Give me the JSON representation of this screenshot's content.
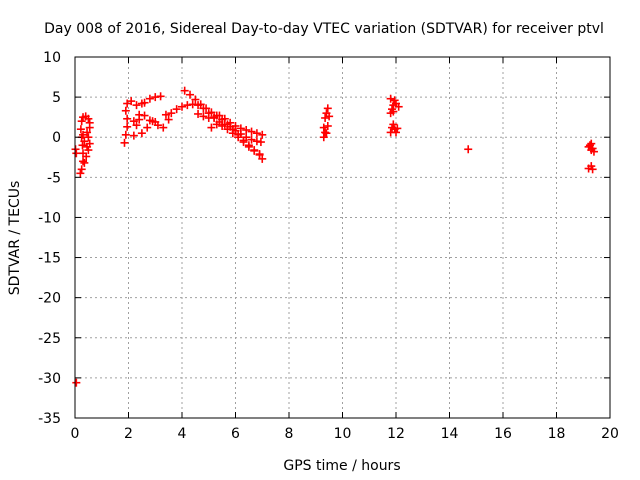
{
  "chart_data": {
    "type": "scatter",
    "title": "Day 008 of 2016, Sidereal Day-to-day VTEC variation (SDTVAR) for receiver ptvl",
    "xlabel": "GPS time / hours",
    "ylabel": "SDTVAR / TECUs",
    "xlim": [
      0,
      20
    ],
    "ylim": [
      -35,
      10
    ],
    "xticks": [
      0,
      2,
      4,
      6,
      8,
      10,
      12,
      14,
      16,
      18,
      20
    ],
    "yticks": [
      10,
      5,
      0,
      -5,
      -10,
      -15,
      -20,
      -25,
      -30,
      -35
    ],
    "grid": true,
    "series": [
      {
        "name": "SDTVAR",
        "color": "#ff0000",
        "marker": "plus",
        "points": [
          [
            0.02,
            -1.5
          ],
          [
            0.05,
            -2.0
          ],
          [
            0.05,
            -30.6
          ],
          [
            0.2,
            -4.5
          ],
          [
            0.25,
            -4.0
          ],
          [
            0.3,
            -3.0
          ],
          [
            0.3,
            -2.0
          ],
          [
            0.28,
            -1.0
          ],
          [
            0.25,
            0.0
          ],
          [
            0.22,
            1.0
          ],
          [
            0.25,
            2.0
          ],
          [
            0.3,
            2.5
          ],
          [
            0.4,
            2.6
          ],
          [
            0.5,
            2.3
          ],
          [
            0.55,
            1.8
          ],
          [
            0.35,
            -3.2
          ],
          [
            0.42,
            -2.4
          ],
          [
            0.5,
            -1.6
          ],
          [
            0.55,
            -0.8
          ],
          [
            0.5,
            0.0
          ],
          [
            0.45,
            0.6
          ],
          [
            0.55,
            1.2
          ],
          [
            0.3,
            0.3
          ],
          [
            0.35,
            -0.5
          ],
          [
            0.45,
            -1.2
          ],
          [
            1.85,
            -0.7
          ],
          [
            1.9,
            0.3
          ],
          [
            1.95,
            1.3
          ],
          [
            1.95,
            2.3
          ],
          [
            1.9,
            3.3
          ],
          [
            1.95,
            4.2
          ],
          [
            2.1,
            4.5
          ],
          [
            2.2,
            0.2
          ],
          [
            2.3,
            1.5
          ],
          [
            2.4,
            2.8
          ],
          [
            2.3,
            4.0
          ],
          [
            2.5,
            4.2
          ],
          [
            2.5,
            0.5
          ],
          [
            2.7,
            1.2
          ],
          [
            2.9,
            2.0
          ],
          [
            3.1,
            1.5
          ],
          [
            3.3,
            1.2
          ],
          [
            3.5,
            2.2
          ],
          [
            2.2,
            2.0
          ],
          [
            2.4,
            2.2
          ],
          [
            2.6,
            2.7
          ],
          [
            2.8,
            2.1
          ],
          [
            3.0,
            1.9
          ],
          [
            2.6,
            4.3
          ],
          [
            2.8,
            4.8
          ],
          [
            3.0,
            5.0
          ],
          [
            3.2,
            5.1
          ],
          [
            3.4,
            2.8
          ],
          [
            3.6,
            3.0
          ],
          [
            3.8,
            3.5
          ],
          [
            4.0,
            3.8
          ],
          [
            4.2,
            4.0
          ],
          [
            4.4,
            4.1
          ],
          [
            4.6,
            4.0
          ],
          [
            4.8,
            3.6
          ],
          [
            5.0,
            3.0
          ],
          [
            5.2,
            2.4
          ],
          [
            5.4,
            1.9
          ],
          [
            5.6,
            1.6
          ],
          [
            5.8,
            1.3
          ],
          [
            6.0,
            0.8
          ],
          [
            6.2,
            0.4
          ],
          [
            6.4,
            0.0
          ],
          [
            6.6,
            -0.3
          ],
          [
            6.8,
            -0.5
          ],
          [
            6.95,
            -0.6
          ],
          [
            4.1,
            5.8
          ],
          [
            4.3,
            5.3
          ],
          [
            4.5,
            4.7
          ],
          [
            4.7,
            4.1
          ],
          [
            4.9,
            3.6
          ],
          [
            5.1,
            3.1
          ],
          [
            5.3,
            2.7
          ],
          [
            5.5,
            2.2
          ],
          [
            5.7,
            1.6
          ],
          [
            5.9,
            1.0
          ],
          [
            6.1,
            0.3
          ],
          [
            6.3,
            -0.4
          ],
          [
            6.5,
            -1.0
          ],
          [
            6.7,
            -1.6
          ],
          [
            6.9,
            -2.2
          ],
          [
            7.0,
            -2.7
          ],
          [
            4.6,
            2.9
          ],
          [
            4.8,
            2.6
          ],
          [
            5.0,
            2.4
          ],
          [
            5.2,
            2.5
          ],
          [
            5.4,
            2.7
          ],
          [
            5.6,
            2.3
          ],
          [
            5.8,
            1.8
          ],
          [
            6.0,
            1.4
          ],
          [
            6.2,
            1.1
          ],
          [
            6.4,
            0.9
          ],
          [
            6.6,
            0.7
          ],
          [
            6.8,
            0.5
          ],
          [
            7.0,
            0.3
          ],
          [
            5.1,
            1.2
          ],
          [
            5.3,
            1.6
          ],
          [
            5.5,
            1.4
          ],
          [
            5.7,
            1.0
          ],
          [
            5.9,
            0.5
          ],
          [
            6.1,
            0.0
          ],
          [
            6.3,
            -0.6
          ],
          [
            6.5,
            -1.2
          ],
          [
            6.7,
            -1.7
          ],
          [
            6.9,
            -2.1
          ],
          [
            9.3,
            0.0
          ],
          [
            9.35,
            0.6
          ],
          [
            9.3,
            1.2
          ],
          [
            9.35,
            2.4
          ],
          [
            9.4,
            3.0
          ],
          [
            9.45,
            3.6
          ],
          [
            9.5,
            2.6
          ],
          [
            9.45,
            1.4
          ],
          [
            9.4,
            0.5
          ],
          [
            11.8,
            0.6
          ],
          [
            11.85,
            1.2
          ],
          [
            11.9,
            1.6
          ],
          [
            11.95,
            1.0
          ],
          [
            12.0,
            0.6
          ],
          [
            11.8,
            3.0
          ],
          [
            11.85,
            3.5
          ],
          [
            11.9,
            4.0
          ],
          [
            11.95,
            4.6
          ],
          [
            12.0,
            4.2
          ],
          [
            12.1,
            3.8
          ],
          [
            11.9,
            3.2
          ],
          [
            11.8,
            4.8
          ],
          [
            12.05,
            1.1
          ],
          [
            14.7,
            -1.5
          ],
          [
            19.2,
            -1.2
          ],
          [
            19.3,
            -0.8
          ],
          [
            19.35,
            -1.4
          ],
          [
            19.4,
            -1.8
          ],
          [
            19.3,
            -1.6
          ],
          [
            19.25,
            -1.0
          ],
          [
            19.2,
            -3.9
          ],
          [
            19.3,
            -3.6
          ],
          [
            19.35,
            -4.0
          ]
        ]
      }
    ]
  }
}
